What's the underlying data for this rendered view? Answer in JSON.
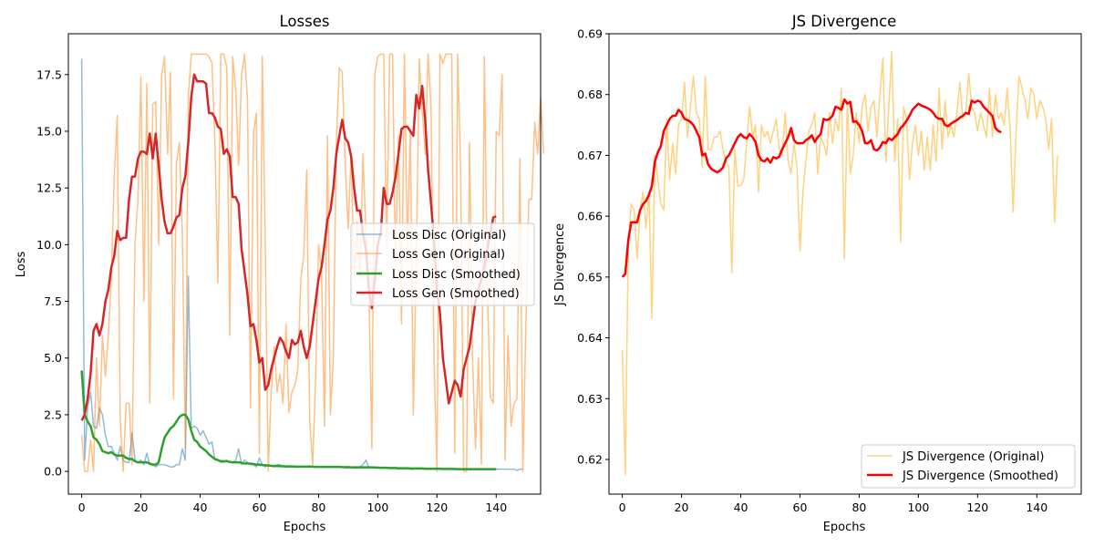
{
  "chart_data": [
    {
      "type": "line",
      "title": "Losses",
      "xlabel": "Epochs",
      "ylabel": "Loss",
      "xlim": [
        -4.5,
        155
      ],
      "ylim": [
        -1.0,
        19.3
      ],
      "xticks": [
        0,
        20,
        40,
        60,
        80,
        100,
        120,
        140
      ],
      "yticks": [
        0.0,
        2.5,
        5.0,
        7.5,
        10.0,
        12.5,
        15.0,
        17.5
      ],
      "ytick_labels": [
        "0.0",
        "2.5",
        "5.0",
        "7.5",
        "10.0",
        "12.5",
        "15.0",
        "17.5"
      ],
      "grid": false,
      "legend_position": "center-right",
      "series": [
        {
          "name": "Loss Disc (Original)",
          "color": "#1f77b4",
          "opacity": 0.5,
          "width": 1.5,
          "x_start": 0,
          "values": [
            18.2,
            0.5,
            2.8,
            3.5,
            2.0,
            1.9,
            2.8,
            2.5,
            1.6,
            1.1,
            1.1,
            0.8,
            0.5,
            1.1,
            0.5,
            0.4,
            0.4,
            1.7,
            0.5,
            0.4,
            0.5,
            0.3,
            0.8,
            0.3,
            0.3,
            0.2,
            0.3,
            0.3,
            0.3,
            0.25,
            0.2,
            0.2,
            0.3,
            0.3,
            1.0,
            0.5,
            8.6,
            1.9,
            2.0,
            1.9,
            1.6,
            1.8,
            1.5,
            1.2,
            1.3,
            0.5,
            0.5,
            0.4,
            0.4,
            0.5,
            0.4,
            0.4,
            0.5,
            1.0,
            0.3,
            0.5,
            0.4,
            0.3,
            0.3,
            0.2,
            0.6,
            0.3,
            0.2,
            0.3,
            0.25,
            0.2,
            0.3,
            0.3,
            0.2,
            0.2,
            0.2,
            0.2,
            0.25,
            0.2,
            0.2,
            0.2,
            0.2,
            0.25,
            0.2,
            0.2,
            0.2,
            0.2,
            0.2,
            0.2,
            0.2,
            0.2,
            0.2,
            0.2,
            0.2,
            0.15,
            0.15,
            0.2,
            0.15,
            0.15,
            0.2,
            0.3,
            0.5,
            0.15,
            0.2,
            0.15,
            0.15,
            0.15,
            0.15,
            0.15,
            0.15,
            0.15,
            0.15,
            0.1,
            0.15,
            0.15,
            0.15,
            0.1,
            0.1,
            0.15,
            0.1,
            0.15,
            0.1,
            0.1,
            0.1,
            0.1,
            0.1,
            0.1,
            0.1,
            0.1,
            0.1,
            0.1,
            0.1,
            0.1,
            0.1,
            0.1,
            0.1,
            0.1,
            0.1,
            0.1,
            0.1,
            0.1,
            0.1,
            0.1,
            0.1,
            0.1,
            0.1,
            0.1,
            0.1,
            0.1,
            0.1,
            0.1,
            0.1,
            0.05,
            0.1,
            0.1
          ]
        },
        {
          "name": "Loss Gen (Original)",
          "color": "#ff7f0e",
          "opacity": 0.5,
          "width": 1.5,
          "x_start": 0,
          "values": [
            1.6,
            0.0,
            0.0,
            1.4,
            0.0,
            5.0,
            2.0,
            6.0,
            4.2,
            6.0,
            8.5,
            13.0,
            15.7,
            2.3,
            0.0,
            3.0,
            3.0,
            0.3,
            10.0,
            12.0,
            17.4,
            7.5,
            17.1,
            3.0,
            16.2,
            16.3,
            10.0,
            17.5,
            18.3,
            14.0,
            17.6,
            3.2,
            13.6,
            14.5,
            10.5,
            1.0,
            16.5,
            18.4,
            18.4,
            18.4,
            18.4,
            18.4,
            18.4,
            18.3,
            18.0,
            14.5,
            8.3,
            18.4,
            18.4,
            17.8,
            6.0,
            18.3,
            16.8,
            13.5,
            17.5,
            18.4,
            16.4,
            2.8,
            14.9,
            15.8,
            0.8,
            18.3,
            10.0,
            0.0,
            3.5,
            5.5,
            3.5,
            4.3,
            3.0,
            6.5,
            2.6,
            3.5,
            3.8,
            4.5,
            8.5,
            9.5,
            13.3,
            2.3,
            0.3,
            4.0,
            10.0,
            8.8,
            2.0,
            14.8,
            2.5,
            5.0,
            14.5,
            17.8,
            17.6,
            13.5,
            10.7,
            14.0,
            8.5,
            11.0,
            8.5,
            14.0,
            10.5,
            8.0,
            1.0,
            17.5,
            18.3,
            18.4,
            18.4,
            9.8,
            18.4,
            18.4,
            9.0,
            14.8,
            6.5,
            18.4,
            9.8,
            15.1,
            2.5,
            9.2,
            18.2,
            16.0,
            14.0,
            18.4,
            16.0,
            4.9,
            0.0,
            18.4,
            18.0,
            18.4,
            18.4,
            18.4,
            0.8,
            18.4,
            13.2,
            0.0,
            0.0,
            14.5,
            5.0,
            1.0,
            5.0,
            0.3,
            18.3,
            8.0,
            3.3,
            3.0,
            15.0,
            14.8,
            17.5,
            0.5,
            6.0,
            2.0,
            3.0,
            3.2,
            13.8,
            0.0,
            6.3,
            12.0,
            12.0,
            15.4,
            14.0,
            16.5,
            14.0
          ]
        },
        {
          "name": "Loss Disc (Smoothed)",
          "color": "#2ca02c",
          "opacity": 1,
          "width": 2.5,
          "x_start": 0,
          "values": [
            4.45,
            2.5,
            2.2,
            2.0,
            1.5,
            1.4,
            1.2,
            0.9,
            0.85,
            0.8,
            0.85,
            0.75,
            0.7,
            0.7,
            0.7,
            0.6,
            0.55,
            0.55,
            0.45,
            0.4,
            0.4,
            0.4,
            0.4,
            0.35,
            0.3,
            0.3,
            0.4,
            1.0,
            1.5,
            1.7,
            1.9,
            2.0,
            2.2,
            2.4,
            2.5,
            2.5,
            2.3,
            1.8,
            1.4,
            1.3,
            1.1,
            1.0,
            0.9,
            0.75,
            0.65,
            0.55,
            0.5,
            0.45,
            0.45,
            0.45,
            0.42,
            0.4,
            0.4,
            0.4,
            0.38,
            0.35,
            0.35,
            0.34,
            0.33,
            0.3,
            0.3,
            0.28,
            0.27,
            0.26,
            0.25,
            0.24,
            0.24,
            0.23,
            0.23,
            0.22,
            0.22,
            0.22,
            0.21,
            0.21,
            0.21,
            0.21,
            0.21,
            0.21,
            0.21,
            0.2,
            0.2,
            0.2,
            0.2,
            0.2,
            0.2,
            0.2,
            0.2,
            0.2,
            0.19,
            0.19,
            0.19,
            0.18,
            0.18,
            0.18,
            0.18,
            0.18,
            0.18,
            0.18,
            0.18,
            0.17,
            0.17,
            0.16,
            0.16,
            0.16,
            0.15,
            0.15,
            0.15,
            0.14,
            0.14,
            0.14,
            0.14,
            0.13,
            0.13,
            0.13,
            0.13,
            0.13,
            0.12,
            0.12,
            0.12,
            0.12,
            0.12,
            0.12,
            0.11,
            0.11,
            0.11,
            0.11,
            0.11,
            0.1,
            0.1,
            0.1,
            0.1,
            0.1,
            0.1,
            0.1,
            0.1,
            0.1,
            0.1,
            0.1,
            0.1,
            0.1,
            0.1
          ]
        },
        {
          "name": "Loss Gen (Smoothed)",
          "color": "#d62728",
          "opacity": 1,
          "width": 2.5,
          "x_start": 0,
          "values": [
            2.25,
            2.5,
            3.2,
            4.3,
            6.2,
            6.5,
            6.0,
            6.5,
            7.5,
            8.0,
            9.0,
            9.5,
            10.6,
            10.2,
            10.3,
            10.3,
            12.0,
            13.0,
            13.0,
            13.8,
            14.1,
            14.1,
            14.0,
            14.9,
            13.8,
            14.9,
            13.5,
            12.0,
            11.0,
            10.5,
            10.5,
            10.8,
            11.2,
            11.3,
            12.5,
            13.0,
            14.5,
            16.5,
            17.5,
            17.2,
            17.2,
            17.2,
            17.1,
            15.8,
            15.8,
            15.6,
            15.2,
            15.1,
            14.0,
            14.2,
            13.9,
            12.1,
            12.1,
            11.8,
            9.8,
            8.8,
            7.8,
            6.4,
            6.5,
            5.8,
            4.8,
            5.0,
            3.6,
            3.8,
            4.5,
            5.0,
            5.5,
            5.9,
            5.7,
            5.3,
            5.0,
            5.8,
            5.6,
            5.7,
            6.2,
            5.5,
            5.0,
            5.5,
            6.5,
            7.5,
            8.5,
            9.0,
            10.0,
            11.1,
            11.5,
            12.5,
            14.0,
            14.8,
            15.5,
            14.7,
            14.5,
            13.9,
            12.5,
            11.5,
            11.5,
            10.5,
            9.8,
            8.0,
            7.2,
            8.5,
            10.0,
            10.5,
            12.5,
            11.8,
            11.8,
            12.3,
            13.0,
            14.0,
            15.1,
            15.2,
            15.2,
            15.0,
            14.8,
            16.6,
            16.0,
            17.0,
            15.5,
            13.3,
            11.8,
            10.2,
            8.0,
            7.0,
            5.0,
            4.0,
            3.0,
            3.5,
            4.0,
            3.8,
            3.3,
            4.5,
            5.0,
            5.5,
            6.5,
            7.5,
            8.0,
            8.5,
            9.0,
            9.8,
            10.5,
            11.2,
            11.25
          ]
        }
      ]
    },
    {
      "type": "line",
      "title": "JS Divergence",
      "xlabel": "Epochs",
      "ylabel": "JS Divergence",
      "xlim": [
        -4.5,
        155
      ],
      "ylim": [
        0.6143,
        0.69
      ],
      "xticks": [
        0,
        20,
        40,
        60,
        80,
        100,
        120,
        140
      ],
      "yticks": [
        0.62,
        0.63,
        0.64,
        0.65,
        0.66,
        0.67,
        0.68,
        0.69
      ],
      "ytick_labels": [
        "0.62",
        "0.63",
        "0.64",
        "0.65",
        "0.66",
        "0.67",
        "0.68",
        "0.69"
      ],
      "grid": false,
      "legend_position": "lower-right",
      "series": [
        {
          "name": "JS Divergence (Original)",
          "color": "#ffa500",
          "opacity": 0.5,
          "width": 1.5,
          "x_start": 0,
          "values": [
            0.638,
            0.6175,
            0.655,
            0.662,
            0.661,
            0.653,
            0.661,
            0.664,
            0.658,
            0.664,
            0.6432,
            0.67,
            0.666,
            0.662,
            0.661,
            0.676,
            0.666,
            0.672,
            0.667,
            0.675,
            0.676,
            0.682,
            0.673,
            0.678,
            0.683,
            0.677,
            0.676,
            0.668,
            0.683,
            0.671,
            0.671,
            0.673,
            0.673,
            0.674,
            0.671,
            0.669,
            0.668,
            0.6507,
            0.671,
            0.665,
            0.665,
            0.666,
            0.672,
            0.678,
            0.673,
            0.675,
            0.664,
            0.675,
            0.673,
            0.674,
            0.672,
            0.674,
            0.676,
            0.671,
            0.67,
            0.677,
            0.669,
            0.667,
            0.672,
            0.668,
            0.6543,
            0.664,
            0.669,
            0.674,
            0.675,
            0.677,
            0.667,
            0.673,
            0.672,
            0.67,
            0.677,
            0.672,
            0.676,
            0.674,
            0.681,
            0.653,
            0.679,
            0.667,
            0.67,
            0.677,
            0.672,
            0.678,
            0.68,
            0.674,
            0.678,
            0.679,
            0.673,
            0.68,
            0.686,
            0.669,
            0.678,
            0.687,
            0.669,
            0.676,
            0.6558,
            0.678,
            0.676,
            0.666,
            0.672,
            0.675,
            0.67,
            0.674,
            0.6675,
            0.673,
            0.6675,
            0.675,
            0.669,
            0.681,
            0.671,
            0.679,
            0.673,
            0.675,
            0.673,
            0.677,
            0.682,
            0.676,
            0.677,
            0.6835,
            0.678,
            0.677,
            0.674,
            0.677,
            0.675,
            0.673,
            0.681,
            0.673,
            0.68,
            0.676,
            0.677,
            0.675,
            0.681,
            0.674,
            0.6607,
            0.674,
            0.683,
            0.681,
            0.679,
            0.676,
            0.681,
            0.68,
            0.676,
            0.679,
            0.678,
            0.676,
            0.671,
            0.676,
            0.659,
            0.67
          ]
        },
        {
          "name": "JS Divergence (Smoothed)",
          "color": "#ff0000",
          "opacity": 1,
          "width": 2.5,
          "x_start": 0,
          "values": [
            0.65,
            0.6505,
            0.656,
            0.659,
            0.659,
            0.659,
            0.661,
            0.662,
            0.6625,
            0.6635,
            0.665,
            0.669,
            0.6705,
            0.6715,
            0.674,
            0.675,
            0.676,
            0.6765,
            0.6765,
            0.6775,
            0.677,
            0.676,
            0.6758,
            0.6755,
            0.675,
            0.674,
            0.673,
            0.67,
            0.6703,
            0.6685,
            0.6678,
            0.6675,
            0.6672,
            0.6675,
            0.668,
            0.6695,
            0.67,
            0.671,
            0.672,
            0.673,
            0.6735,
            0.673,
            0.6728,
            0.6735,
            0.673,
            0.6722,
            0.67,
            0.6692,
            0.669,
            0.6695,
            0.6688,
            0.6697,
            0.6695,
            0.6698,
            0.671,
            0.672,
            0.673,
            0.6745,
            0.6725,
            0.672,
            0.672,
            0.672,
            0.6725,
            0.6728,
            0.6733,
            0.6722,
            0.673,
            0.6735,
            0.676,
            0.6758,
            0.676,
            0.6765,
            0.678,
            0.6778,
            0.6775,
            0.6792,
            0.6785,
            0.6788,
            0.6755,
            0.6756,
            0.675,
            0.674,
            0.672,
            0.672,
            0.6725,
            0.671,
            0.6708,
            0.6713,
            0.6722,
            0.672,
            0.6728,
            0.6725,
            0.673,
            0.6735,
            0.6745,
            0.675,
            0.6757,
            0.6765,
            0.6775,
            0.678,
            0.6785,
            0.6782,
            0.678,
            0.6778,
            0.6775,
            0.677,
            0.6763,
            0.676,
            0.676,
            0.675,
            0.6748,
            0.6752,
            0.6755,
            0.6758,
            0.6762,
            0.6765,
            0.677,
            0.6768,
            0.679,
            0.6787,
            0.679,
            0.6788,
            0.678,
            0.6775,
            0.677,
            0.6765,
            0.6745,
            0.674,
            0.6738
          ]
        }
      ]
    }
  ]
}
